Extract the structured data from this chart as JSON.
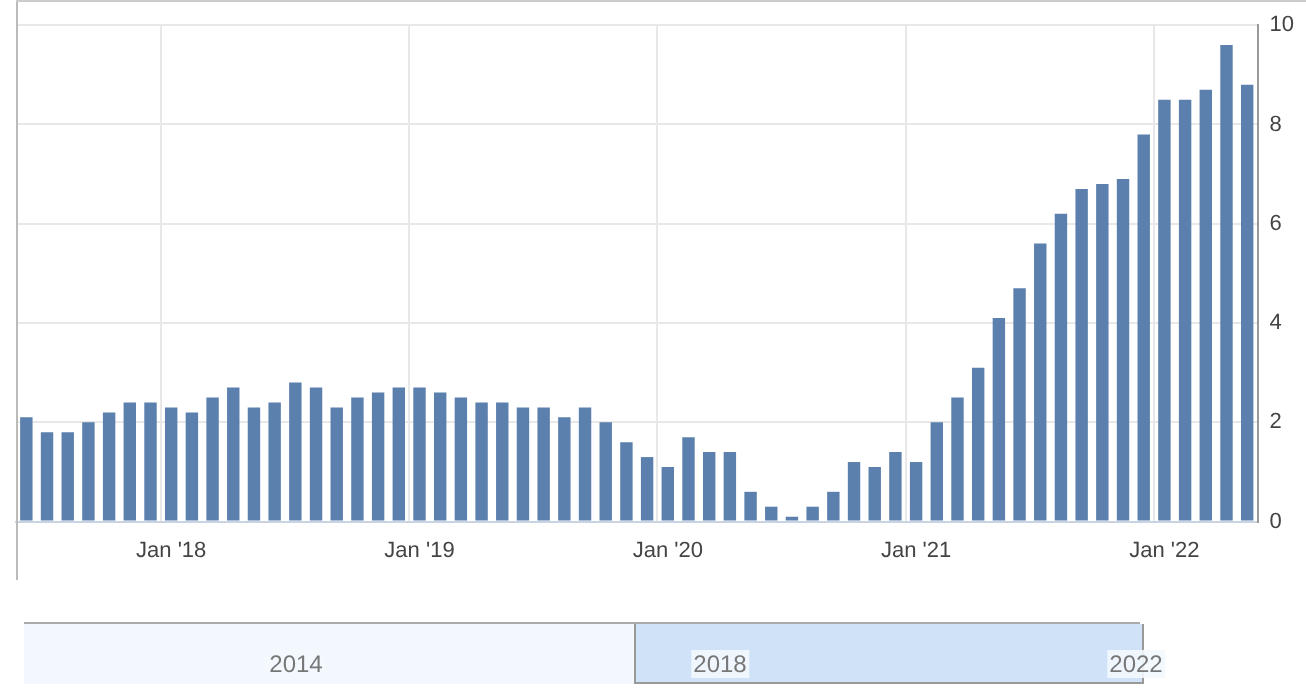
{
  "chart_data": {
    "type": "bar",
    "categories": [
      null,
      null,
      null,
      null,
      null,
      null,
      null,
      "Jan '18",
      null,
      null,
      null,
      null,
      null,
      null,
      null,
      null,
      null,
      null,
      null,
      "Jan '19",
      null,
      null,
      null,
      null,
      null,
      null,
      null,
      null,
      null,
      null,
      null,
      "Jan '20",
      null,
      null,
      null,
      null,
      null,
      null,
      null,
      null,
      null,
      null,
      null,
      "Jan '21",
      null,
      null,
      null,
      null,
      null,
      null,
      null,
      null,
      null,
      null,
      null,
      "Jan '22",
      null,
      null,
      null,
      null
    ],
    "values": [
      2.1,
      1.8,
      1.8,
      2.0,
      2.2,
      2.4,
      2.4,
      2.3,
      2.2,
      2.5,
      2.7,
      2.3,
      2.4,
      2.8,
      2.7,
      2.3,
      2.5,
      2.6,
      2.7,
      2.7,
      2.6,
      2.5,
      2.4,
      2.4,
      2.3,
      2.3,
      2.1,
      2.3,
      2.0,
      1.6,
      1.3,
      1.1,
      1.7,
      1.4,
      1.4,
      0.6,
      0.3,
      0.1,
      0.3,
      0.6,
      1.2,
      1.1,
      1.4,
      1.2,
      2.0,
      2.5,
      3.1,
      4.1,
      4.7,
      5.6,
      6.2,
      6.7,
      6.8,
      6.9,
      7.8,
      8.5,
      8.5,
      8.7,
      9.6,
      8.8
    ],
    "color": "#5b80ad",
    "ylim": [
      0,
      10
    ],
    "yticks": [
      0,
      2,
      4,
      6,
      8,
      10
    ],
    "grid": true,
    "legend": false,
    "annotations": [
      "2014",
      "2018",
      "2022"
    ]
  }
}
